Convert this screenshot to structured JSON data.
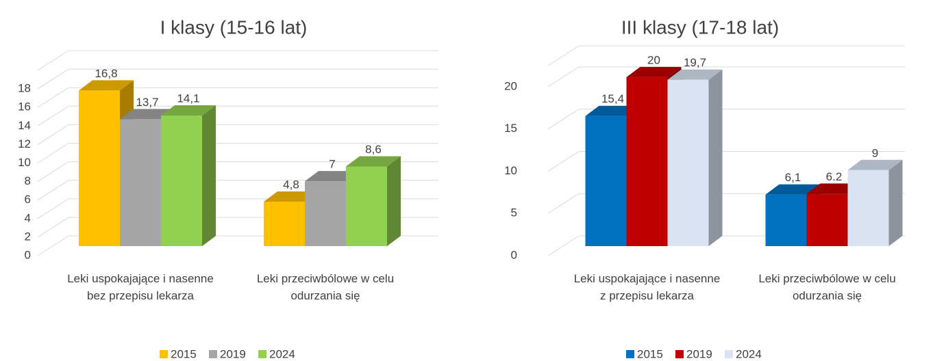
{
  "chart_data": [
    {
      "type": "bar3d",
      "title": "I klasy (15-16 lat)",
      "categories": [
        "Leki uspokajające i nasenne bez przepisu lekarza",
        "Leki przeciwbólowe w celu odurzania się"
      ],
      "series": [
        {
          "name": "2015",
          "color": "#ffc000",
          "values": [
            16.8,
            4.8
          ],
          "value_labels": [
            "16,8",
            "4,8"
          ]
        },
        {
          "name": "2019",
          "color": "#a5a5a5",
          "values": [
            13.7,
            7
          ],
          "value_labels": [
            "13,7",
            "7"
          ]
        },
        {
          "name": "2024",
          "color": "#92d050",
          "values": [
            14.1,
            8.6
          ],
          "value_labels": [
            "14,1",
            "8,6"
          ]
        }
      ],
      "ylim": [
        0,
        20
      ],
      "yticks": [
        0,
        2,
        4,
        6,
        8,
        10,
        12,
        14,
        16,
        18
      ],
      "grid": true,
      "legend": "bottom"
    },
    {
      "type": "bar3d",
      "title": "III klasy (17-18 lat)",
      "categories": [
        "Leki uspokajające i nasenne z przepisu lekarza",
        "Leki przeciwbólowe w celu odurzania się"
      ],
      "series": [
        {
          "name": "2015",
          "color": "#0070c0",
          "values": [
            15.4,
            6.1
          ],
          "value_labels": [
            "15,4",
            "6,1"
          ]
        },
        {
          "name": "2019",
          "color": "#c00000",
          "values": [
            20,
            6.2
          ]
        },
        {
          "name": "2024",
          "color": "#dae3f3",
          "values": [
            19.7,
            9
          ],
          "value_labels": [
            "19,7",
            "9"
          ]
        }
      ],
      "ylim": [
        0,
        22.5
      ],
      "yticks": [
        0,
        5,
        10,
        15,
        20
      ],
      "grid": true,
      "legend": "bottom"
    }
  ]
}
